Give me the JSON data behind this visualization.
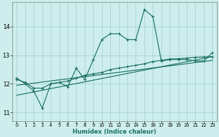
{
  "xlabel": "Humidex (Indice chaleur)",
  "bg_color": "#cdeeed",
  "line_color": "#1a6e64",
  "xlim": [
    -0.5,
    23.5
  ],
  "ylim": [
    10.7,
    14.85
  ],
  "yticks": [
    11,
    12,
    13,
    14
  ],
  "xticks": [
    0,
    1,
    2,
    3,
    4,
    5,
    6,
    7,
    8,
    9,
    10,
    11,
    12,
    13,
    14,
    15,
    16,
    17,
    18,
    19,
    20,
    21,
    22,
    23
  ],
  "series1_x": [
    0,
    1,
    2,
    3,
    4,
    5,
    6,
    7,
    8,
    9,
    10,
    11,
    12,
    13,
    14,
    15,
    16,
    17,
    18,
    19,
    20,
    21,
    22,
    23
  ],
  "series1_y": [
    12.2,
    12.0,
    11.75,
    11.15,
    12.0,
    12.05,
    11.9,
    12.55,
    12.15,
    12.85,
    13.55,
    13.75,
    13.75,
    13.55,
    13.55,
    14.6,
    14.35,
    12.8,
    12.85,
    12.85,
    12.85,
    12.8,
    12.8,
    13.1
  ],
  "series2_x": [
    0,
    1,
    2,
    3,
    4,
    5,
    6,
    7,
    8,
    9,
    10,
    11,
    12,
    13,
    14,
    15,
    16,
    17,
    18,
    19,
    20,
    21,
    22,
    23
  ],
  "series2_y": [
    12.15,
    12.05,
    11.85,
    11.85,
    12.0,
    12.05,
    12.1,
    12.2,
    12.3,
    12.35,
    12.4,
    12.5,
    12.55,
    12.6,
    12.65,
    12.7,
    12.78,
    12.82,
    12.87,
    12.88,
    12.9,
    12.93,
    12.94,
    12.95
  ],
  "series3_x": [
    0,
    23
  ],
  "series3_y": [
    11.6,
    12.95
  ],
  "series4_x": [
    0,
    23
  ],
  "series4_y": [
    11.95,
    12.82
  ]
}
